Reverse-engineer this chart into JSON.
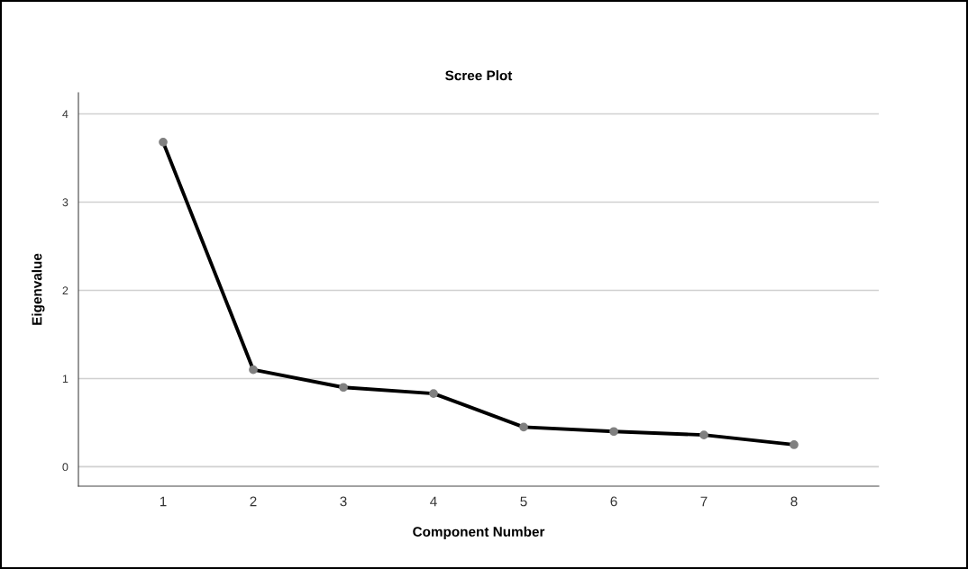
{
  "chart_data": {
    "type": "line",
    "title": "Scree Plot",
    "xlabel": "Component Number",
    "ylabel": "Eigenvalue",
    "x": [
      1,
      2,
      3,
      4,
      5,
      6,
      7,
      8
    ],
    "series": [
      {
        "color": "#000000",
        "values": [
          3.68,
          1.1,
          0.9,
          0.83,
          0.45,
          0.4,
          0.36,
          0.25
        ]
      }
    ],
    "xlim": [
      0.06,
      8.94
    ],
    "xticks": [
      1,
      2,
      3,
      4,
      5,
      6,
      7,
      8
    ],
    "ylim": [
      -0.22,
      4.24
    ],
    "yticks": [
      0,
      1,
      2,
      3,
      4
    ],
    "grid": "y",
    "marker": "circle",
    "line_style": "solid"
  }
}
